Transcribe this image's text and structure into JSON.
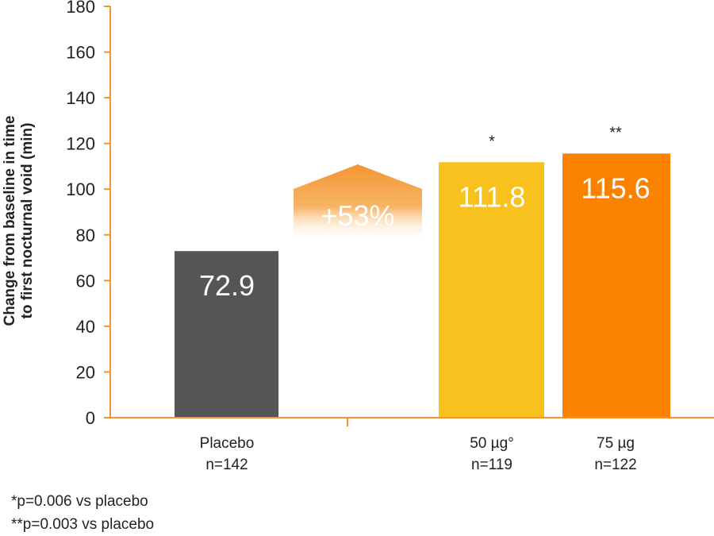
{
  "chart_data": {
    "type": "bar",
    "ylabel": "Change from baseline in time to first nocturnal void (min)",
    "ylabel_lines": [
      "Change from baseline in time",
      "to first nocturnal void (min)"
    ],
    "ylim": [
      0,
      180
    ],
    "yticks": [
      0,
      20,
      40,
      60,
      80,
      100,
      120,
      140,
      160,
      180
    ],
    "grid": false,
    "categories": [
      {
        "name": "Placebo",
        "n": "n=142",
        "value": 72.9,
        "label": "72.9",
        "marker": "",
        "color": "#555555"
      },
      {
        "name": "50 µg°",
        "n": "n=119",
        "value": 111.8,
        "label": "111.8",
        "marker": "*",
        "color": "#f8c11d"
      },
      {
        "name": "75 µg",
        "n": "n=122",
        "value": 115.6,
        "label": "115.6",
        "marker": "**",
        "color": "#fb8200"
      }
    ],
    "annotation": {
      "text": "+53%",
      "color": "#f39431"
    },
    "colors": {
      "axis": "#f39431",
      "text": "#222222",
      "bar_label": "#ffffff"
    }
  },
  "footnotes": [
    "*p=0.006 vs placebo",
    "**p=0.003 vs placebo"
  ]
}
